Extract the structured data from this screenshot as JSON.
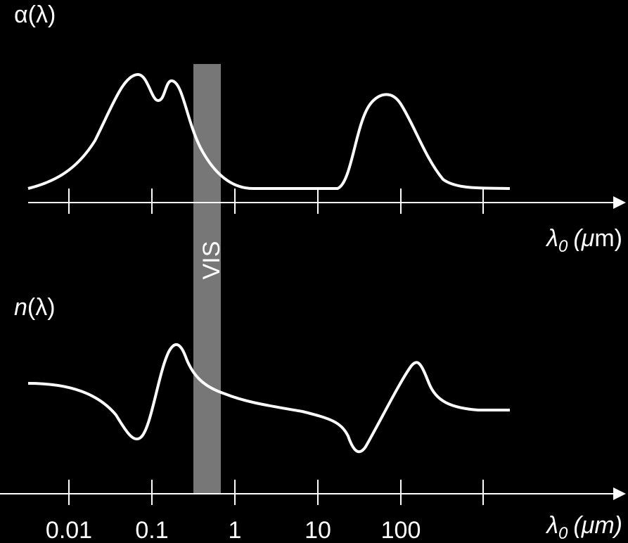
{
  "top_panel": {
    "label": "α(λ)",
    "axis_label": {
      "symbol": "λ",
      "subscript": "0",
      "open": "(",
      "unit_prefix": "μ",
      "unit_rest": "m)"
    }
  },
  "band_label": "VIS",
  "bottom_panel": {
    "label_symbol": "n",
    "label_rest": "(λ)",
    "axis_label": {
      "symbol": "λ",
      "subscript": "0",
      "open": "(",
      "unit_prefix": "μ",
      "unit_rest": "m)"
    },
    "tick_labels": [
      "0.01",
      "0.1",
      "1",
      "10",
      "100"
    ]
  }
}
